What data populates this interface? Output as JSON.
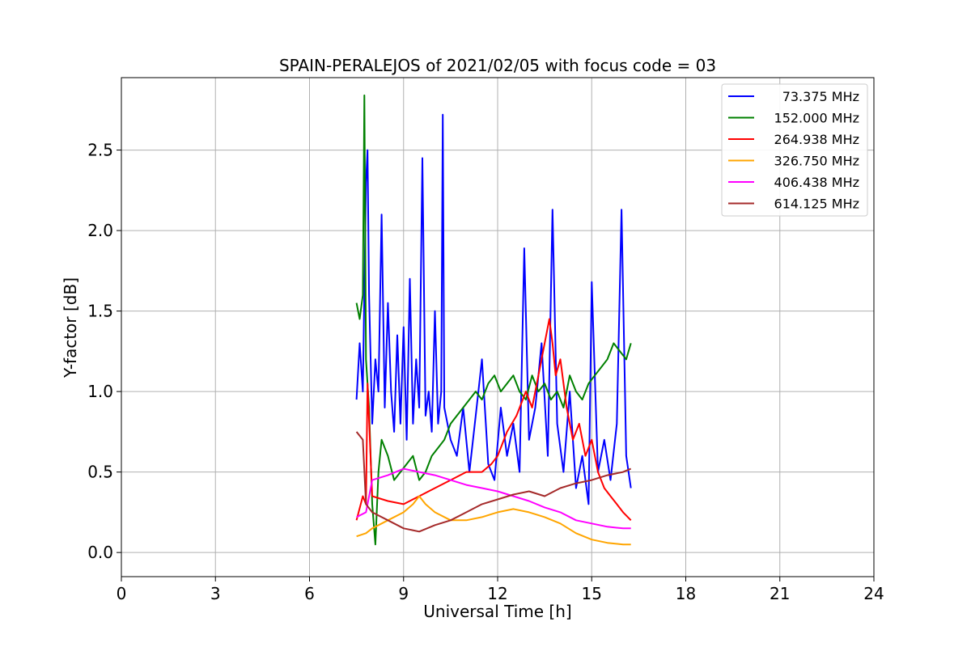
{
  "chart_data": {
    "type": "line",
    "title": "SPAIN-PERALEJOS of 2021/02/05 with focus code = 03",
    "xlabel": "Universal Time [h]",
    "ylabel": "Y-factor [dB]",
    "xlim": [
      0,
      24
    ],
    "ylim": [
      -0.15,
      2.95
    ],
    "x_ticks": [
      "0",
      "3",
      "6",
      "9",
      "12",
      "15",
      "18",
      "21",
      "24"
    ],
    "y_ticks": [
      "0.0",
      "0.5",
      "1.0",
      "1.5",
      "2.0",
      "2.5"
    ],
    "grid": true,
    "legend_position": "top-right",
    "series": [
      {
        "name": "73.375 MHz",
        "color": "#0000ff",
        "x": [
          7.5,
          7.6,
          7.7,
          7.8,
          7.85,
          7.9,
          8.0,
          8.1,
          8.2,
          8.3,
          8.4,
          8.5,
          8.6,
          8.7,
          8.8,
          8.9,
          9.0,
          9.1,
          9.2,
          9.3,
          9.4,
          9.5,
          9.6,
          9.7,
          9.8,
          9.9,
          10.0,
          10.1,
          10.2,
          10.25,
          10.3,
          10.5,
          10.7,
          10.9,
          11.1,
          11.3,
          11.5,
          11.7,
          11.9,
          12.1,
          12.3,
          12.5,
          12.7,
          12.85,
          13.0,
          13.2,
          13.4,
          13.6,
          13.75,
          13.9,
          14.1,
          14.3,
          14.5,
          14.7,
          14.9,
          15.0,
          15.2,
          15.4,
          15.6,
          15.8,
          15.95,
          16.1,
          16.25
        ],
        "y": [
          0.95,
          1.3,
          1.0,
          2.3,
          2.5,
          1.6,
          0.8,
          1.2,
          1.0,
          2.1,
          0.9,
          1.55,
          1.0,
          0.75,
          1.35,
          0.8,
          1.4,
          0.7,
          1.7,
          0.8,
          1.2,
          0.9,
          2.45,
          0.85,
          1.0,
          0.75,
          1.5,
          0.8,
          1.0,
          2.72,
          0.9,
          0.7,
          0.6,
          0.9,
          0.5,
          0.85,
          1.2,
          0.55,
          0.45,
          0.9,
          0.6,
          0.8,
          0.5,
          1.89,
          0.7,
          0.9,
          1.3,
          0.6,
          2.13,
          0.8,
          0.5,
          1.0,
          0.4,
          0.6,
          0.3,
          1.68,
          0.5,
          0.7,
          0.45,
          0.8,
          2.13,
          0.6,
          0.4
        ]
      },
      {
        "name": "152.000 MHz",
        "color": "#008000",
        "x": [
          7.5,
          7.6,
          7.7,
          7.75,
          7.8,
          7.9,
          8.0,
          8.1,
          8.2,
          8.3,
          8.5,
          8.7,
          8.9,
          9.1,
          9.3,
          9.5,
          9.7,
          9.9,
          10.1,
          10.3,
          10.5,
          10.7,
          10.9,
          11.1,
          11.3,
          11.5,
          11.7,
          11.9,
          12.1,
          12.3,
          12.5,
          12.7,
          12.9,
          13.1,
          13.3,
          13.5,
          13.7,
          13.9,
          14.1,
          14.3,
          14.5,
          14.7,
          14.9,
          15.1,
          15.3,
          15.5,
          15.7,
          15.9,
          16.1,
          16.25
        ],
        "y": [
          1.55,
          1.45,
          1.6,
          2.84,
          1.2,
          0.9,
          0.3,
          0.05,
          0.5,
          0.7,
          0.6,
          0.45,
          0.5,
          0.55,
          0.6,
          0.45,
          0.5,
          0.6,
          0.65,
          0.7,
          0.8,
          0.85,
          0.9,
          0.95,
          1.0,
          0.95,
          1.05,
          1.1,
          1.0,
          1.05,
          1.1,
          1.0,
          0.95,
          1.1,
          1.0,
          1.05,
          0.95,
          1.0,
          0.9,
          1.1,
          1.0,
          0.95,
          1.05,
          1.1,
          1.15,
          1.2,
          1.3,
          1.25,
          1.2,
          1.3
        ]
      },
      {
        "name": "264.938 MHz",
        "color": "#ff0000",
        "x": [
          7.5,
          7.7,
          7.8,
          7.85,
          8.0,
          8.5,
          9.0,
          9.5,
          10.0,
          10.5,
          11.0,
          11.5,
          11.8,
          12.0,
          12.3,
          12.6,
          12.9,
          13.1,
          13.3,
          13.5,
          13.65,
          13.75,
          13.85,
          14.0,
          14.2,
          14.4,
          14.6,
          14.8,
          15.0,
          15.2,
          15.4,
          15.6,
          15.8,
          16.0,
          16.25
        ],
        "y": [
          0.2,
          0.35,
          0.3,
          1.05,
          0.35,
          0.32,
          0.3,
          0.35,
          0.4,
          0.45,
          0.5,
          0.5,
          0.55,
          0.6,
          0.75,
          0.85,
          1.0,
          0.9,
          1.1,
          1.3,
          1.45,
          1.3,
          1.1,
          1.2,
          0.9,
          0.7,
          0.8,
          0.6,
          0.7,
          0.5,
          0.4,
          0.35,
          0.3,
          0.25,
          0.2
        ]
      },
      {
        "name": "326.750 MHz",
        "color": "#ffa500",
        "x": [
          7.5,
          7.8,
          8.0,
          8.5,
          9.0,
          9.3,
          9.5,
          9.7,
          10.0,
          10.5,
          11.0,
          11.5,
          12.0,
          12.5,
          13.0,
          13.5,
          14.0,
          14.5,
          15.0,
          15.5,
          16.0,
          16.25
        ],
        "y": [
          0.1,
          0.12,
          0.15,
          0.2,
          0.25,
          0.3,
          0.35,
          0.3,
          0.25,
          0.2,
          0.2,
          0.22,
          0.25,
          0.27,
          0.25,
          0.22,
          0.18,
          0.12,
          0.08,
          0.06,
          0.05,
          0.05
        ]
      },
      {
        "name": "406.438 MHz",
        "color": "#ff00ff",
        "x": [
          7.5,
          7.8,
          8.0,
          8.5,
          9.0,
          9.5,
          10.0,
          10.5,
          11.0,
          11.5,
          12.0,
          12.5,
          13.0,
          13.5,
          14.0,
          14.5,
          15.0,
          15.5,
          16.0,
          16.25
        ],
        "y": [
          0.22,
          0.25,
          0.45,
          0.48,
          0.52,
          0.5,
          0.48,
          0.45,
          0.42,
          0.4,
          0.38,
          0.35,
          0.32,
          0.28,
          0.25,
          0.2,
          0.18,
          0.16,
          0.15,
          0.15
        ]
      },
      {
        "name": "614.125 MHz",
        "color": "#a52a2a",
        "x": [
          7.5,
          7.7,
          7.8,
          8.0,
          8.5,
          9.0,
          9.5,
          10.0,
          10.5,
          11.0,
          11.5,
          12.0,
          12.5,
          13.0,
          13.5,
          14.0,
          14.5,
          15.0,
          15.5,
          16.0,
          16.25
        ],
        "y": [
          0.75,
          0.7,
          0.3,
          0.25,
          0.2,
          0.15,
          0.13,
          0.17,
          0.2,
          0.25,
          0.3,
          0.33,
          0.36,
          0.38,
          0.35,
          0.4,
          0.43,
          0.45,
          0.48,
          0.5,
          0.52
        ]
      }
    ]
  }
}
